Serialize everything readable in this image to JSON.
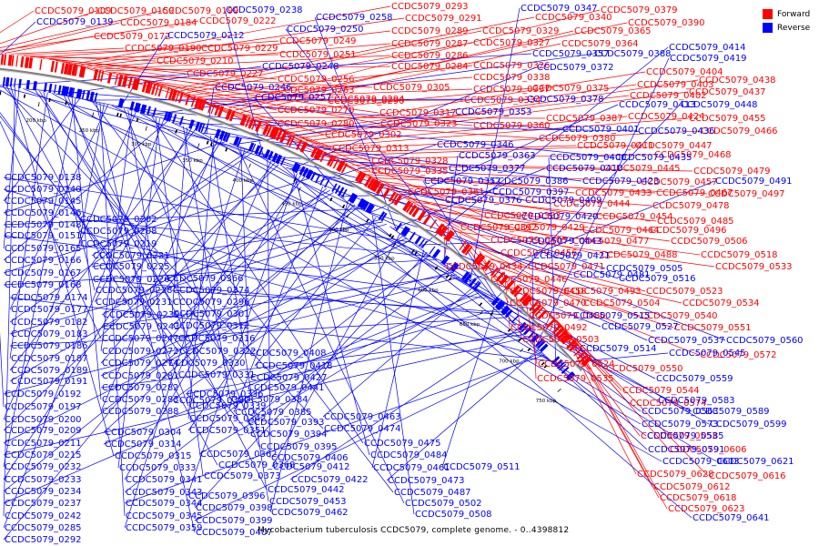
{
  "caption": "Mycobacterium tuberculosis CCDC5079, complete genome. - 0..4398812",
  "legend": [
    {
      "label": "Forward",
      "color": "#ff0000"
    },
    {
      "label": "Reverse",
      "color": "#0000ff"
    }
  ],
  "colors": {
    "forward": "#ff0000",
    "reverse": "#0000ff",
    "backbone": "#7f7f7f"
  },
  "scale_ticks": [
    "150 kbp",
    "200 kbp",
    "250 kbp",
    "300 kbp",
    "350 kbp",
    "400 kbp",
    "450 kbp",
    "500 kbp",
    "550 kbp",
    "600 kbp",
    "650 kbp",
    "700 kbp",
    "750 kbp"
  ],
  "forward_labels": [
    "CCDC5079_0109",
    "CCDC5079_0159",
    "CCDC5079_0199",
    "CCDC5079_0222",
    "CCDC5079_0184",
    "CCDC5079_0172",
    "CCDC5079_0190",
    "CCDC5079_0229",
    "CCDC5079_0210",
    "CCDC5079_0227",
    "CCDC5079_0249",
    "CCDC5079_0251",
    "CCDC5079_0256",
    "CCDC5079_0263",
    "CCDC5079_0270",
    "CCDC5079_0280",
    "CCDC5079_0293",
    "CCDC5079_0291",
    "CCDC5079_0289",
    "CCDC5079_0287",
    "CCDC5079_0286",
    "CCDC5079_0284",
    "CCDC5079_0290",
    "CCDC5079_0294",
    "CCDC5079_0305",
    "CCDC5079_0302",
    "CCDC5079_0313",
    "CCDC5079_0317",
    "CCDC5079_0323",
    "CCDC5079_0328",
    "CCDC5079_0335",
    "CCDC5079_0361",
    "CCDC5079_0340",
    "CCDC5079_0329",
    "CCDC5079_0327",
    "CCDC5079_0326",
    "CCDC5079_0338",
    "CCDC5079_0337",
    "CCDC5079_0334",
    "CCDC5079_0360",
    "CCDC5079_0379",
    "CCDC5079_0390",
    "CCDC5079_0365",
    "CCDC5079_0364",
    "CCDC5079_0375",
    "CCDC5079_0387",
    "CCDC5079_0380",
    "CCDC5079_0383",
    "CCDC5079_0392",
    "CCDC5079_0405",
    "CCDC5079_0404",
    "CCDC5079_0403",
    "CCDC5079_0402",
    "CCDC5079_0438",
    "CCDC5079_0437",
    "CCDC5079_0424",
    "CCDC5079_0455",
    "CCDC5079_0466",
    "CCDC5079_0411",
    "CCDC5079_0447",
    "CCDC5079_0468",
    "CCDC5079_0445",
    "CCDC5079_0479",
    "CCDC5079_0457",
    "CCDC5079_0433",
    "CCDC5079_0467",
    "CCDC5079_0497",
    "CCDC5079_0444",
    "CCDC5079_0478",
    "CCDC5079_0454",
    "CCDC5079_0485",
    "CCDC5079_0429",
    "CCDC5079_0464",
    "CCDC5079_0496",
    "CCDC5079_0477",
    "CCDC5079_0506",
    "CCDC5079_0456",
    "CCDC5079_0488",
    "CCDC5079_0518",
    "CCDC5079_0434",
    "CCDC5079_0471",
    "CCDC5079_0533",
    "CCDC5079_0446",
    "CCDC5079_0458",
    "CCDC5079_0493",
    "CCDC5079_0523",
    "CCDC5079_0470",
    "CCDC5079_0504",
    "CCDC5079_0534",
    "CCDC5079_0480",
    "CCDC5079_0540",
    "CCDC5079_0492",
    "CCDC5079_0551",
    "CCDC5079_0503",
    "CCDC5079_0572",
    "CCDC5079_0524",
    "CCDC5079_0550",
    "CCDC5079_0535",
    "CCDC5079_0544",
    "CCDC5079_0574",
    "CCDC5079_0553",
    "CCDC5079_0606",
    "CCDC5079_0616",
    "CCDC5079_0628",
    "CCDC5079_0612",
    "CCDC5079_0618",
    "CCDC5079_0623",
    "CCDC5079_0633"
  ],
  "reverse_labels": [
    "CCDC5079_0139",
    "CCDC5079_0212",
    "CCDC5079_0238",
    "CCDC5079_0258",
    "CCDC5079_0250",
    "CCDC5079_0248",
    "CCDC5079_0246",
    "CCDC5079_0257",
    "CCDC5079_0347",
    "CCDC5079_0357",
    "CCDC5079_0388",
    "CCDC5079_0372",
    "CCDC5079_0414",
    "CCDC5079_0419",
    "CCDC5079_0378",
    "CCDC5079_0353",
    "CCDC5079_0413",
    "CCDC5079_0448",
    "CCDC5079_0401",
    "CCDC5079_0436",
    "CCDC5079_0346",
    "CCDC5079_0363",
    "CCDC5079_0400",
    "CCDC5079_0435",
    "CCDC5079_0377",
    "CCDC5079_0410",
    "CCDC5079_0352",
    "CCDC5079_0386",
    "CCDC5079_0423",
    "CCDC5079_0397",
    "CCDC5079_0491",
    "CCDC5079_0376",
    "CCDC5079_0409",
    "CCDC5079_0420",
    "CCDC5079_0443",
    "CCDC5079_0421",
    "CCDC5079_0505",
    "CCDC5079_0516",
    "CCDC5079_0481",
    "CCDC5079_0515",
    "CCDC5079_0527",
    "CCDC5079_0537",
    "CCDC5079_0560",
    "CCDC5079_0514",
    "CCDC5079_0545",
    "CCDC5079_0559",
    "CCDC5079_0583",
    "CCDC5079_0563",
    "CCDC5079_0589",
    "CCDC5079_0573",
    "CCDC5079_0599",
    "CCDC5079_0585",
    "CCDC5079_0591",
    "CCDC5079_0603",
    "CCDC5079_0621",
    "CCDC5079_0641",
    "CCDC5079_0138",
    "CCDC5079_0140",
    "CCDC5079_0145",
    "CCDC5079_0146",
    "CCDC5079_0148",
    "CCDC5079_0151",
    "CCDC5079_0165",
    "CCDC5079_0166",
    "CCDC5079_0167",
    "CCDC5079_0168",
    "CCDC5079_0174",
    "CCDC5079_0177",
    "CCDC5079_0182",
    "CCDC5079_0183",
    "CCDC5079_0186",
    "CCDC5079_0187",
    "CCDC5079_0189",
    "CCDC5079_0191",
    "CCDC5079_0192",
    "CCDC5079_0197",
    "CCDC5079_0200",
    "CCDC5079_0209",
    "CCDC5079_0211",
    "CCDC5079_0215",
    "CCDC5079_0232",
    "CCDC5079_0233",
    "CCDC5079_0234",
    "CCDC5079_0237",
    "CCDC5079_0242",
    "CCDC5079_0285",
    "CCDC5079_0292",
    "CCDC5079_0202",
    "CCDC5079_0208",
    "CCDC5079_0219",
    "CCDC5079_0221",
    "CCDC5079_0225",
    "CCDC5079_0226",
    "CCDC5079_0228",
    "CCDC5079_0231",
    "CCDC5079_0239",
    "CCDC5079_0243",
    "CCDC5079_0247",
    "CCDC5079_0272",
    "CCDC5079_0274",
    "CCDC5079_0281",
    "CCDC5079_0282",
    "CCDC5079_0283",
    "CCDC5079_0288",
    "CCDC5079_0304",
    "CCDC5079_0314",
    "CCDC5079_0315",
    "CCDC5079_0333",
    "CCDC5079_0341",
    "CCDC5079_0343",
    "CCDC5079_0344",
    "CCDC5079_0345",
    "CCDC5079_0359",
    "CCDC5079_0366",
    "CCDC5079_0374",
    "CCDC5079_0296",
    "CCDC5079_0301",
    "CCDC5079_0312",
    "CCDC5079_0316",
    "CCDC5079_0322",
    "CCDC5079_0330",
    "CCDC5079_0331",
    "CCDC5079_0332",
    "CCDC5079_0336",
    "CCDC5079_0339",
    "CCDC5079_0342",
    "CCDC5079_0351",
    "CCDC5079_0362",
    "CCDC5079_0368",
    "CCDC5079_0373",
    "CCDC5079_0396",
    "CCDC5079_0398",
    "CCDC5079_0399",
    "CCDC5079_0407",
    "CCDC5079_0408",
    "CCDC5079_0418",
    "CCDC5079_0427",
    "CCDC5079_0441",
    "CCDC5079_0384",
    "CCDC5079_0385",
    "CCDC5079_0393",
    "CCDC5079_0394",
    "CCDC5079_0395",
    "CCDC5079_0406",
    "CCDC5079_0412",
    "CCDC5079_0422",
    "CCDC5079_0442",
    "CCDC5079_0453",
    "CCDC5079_0462",
    "CCDC5079_0463",
    "CCDC5079_0474",
    "CCDC5079_0475",
    "CCDC5079_0484",
    "CCDC5079_0461",
    "CCDC5079_0473",
    "CCDC5079_0487",
    "CCDC5079_0502",
    "CCDC5079_0508",
    "CCDC5079_0511",
    "CCDC5079_0525",
    "CCDC5079_0526",
    "CCDC5079_0536",
    "CCDC5079_0549"
  ]
}
